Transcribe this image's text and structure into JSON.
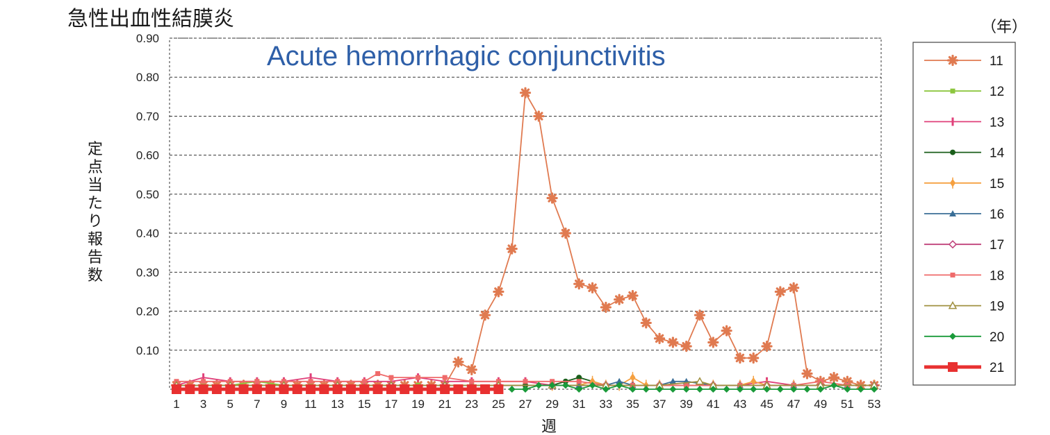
{
  "chart_data": {
    "type": "line",
    "title": "急性出血性結膜炎",
    "subtitle": "Acute hemorrhagic conjunctivitis",
    "xlabel": "週",
    "ylabel": "定点当たり報告数",
    "legend_title": "（年）",
    "legend_position": "right",
    "grid": true,
    "ylim": [
      0,
      0.9
    ],
    "yticks": [
      0.1,
      0.2,
      0.3,
      0.4,
      0.5,
      0.6,
      0.7,
      0.8,
      0.9
    ],
    "ytick_labels": [
      "0.10",
      "0.20",
      "0.30",
      "0.40",
      "0.50",
      "0.60",
      "0.70",
      "0.80",
      "0.90"
    ],
    "xlim": [
      1,
      53
    ],
    "xtick_labels": [
      "1",
      "3",
      "5",
      "7",
      "9",
      "11",
      "13",
      "15",
      "17",
      "19",
      "21",
      "23",
      "25",
      "27",
      "29",
      "31",
      "33",
      "35",
      "37",
      "39",
      "41",
      "43",
      "45",
      "47",
      "49",
      "51",
      "53"
    ],
    "series": [
      {
        "name": "11",
        "color": "#e07a50",
        "marker": "asterisk",
        "x": [
          1,
          2,
          3,
          4,
          5,
          6,
          7,
          8,
          9,
          10,
          11,
          12,
          13,
          14,
          15,
          16,
          17,
          18,
          19,
          20,
          21,
          22,
          23,
          24,
          25,
          26,
          27,
          28,
          29,
          30,
          31,
          32,
          33,
          34,
          35,
          36,
          37,
          38,
          39,
          40,
          41,
          42,
          43,
          44,
          45,
          46,
          47,
          48,
          49,
          50,
          51,
          52,
          53
        ],
        "values": [
          0.01,
          0.01,
          0.01,
          0.01,
          0.01,
          0.01,
          0.01,
          0.01,
          0.01,
          0.01,
          0.01,
          0.01,
          0.01,
          0.01,
          0.01,
          0.01,
          0.01,
          0.01,
          0.01,
          0.01,
          0.01,
          0.07,
          0.05,
          0.19,
          0.25,
          0.36,
          0.76,
          0.7,
          0.49,
          0.4,
          0.27,
          0.26,
          0.21,
          0.23,
          0.24,
          0.17,
          0.13,
          0.12,
          0.11,
          0.19,
          0.12,
          0.15,
          0.08,
          0.08,
          0.11,
          0.25,
          0.26,
          0.04,
          0.02,
          0.03,
          0.02,
          0.01,
          0.01
        ]
      },
      {
        "name": "12",
        "color": "#8cc63e",
        "marker": "square",
        "x": [
          1,
          3,
          5,
          7,
          9,
          11,
          13,
          15,
          17,
          19,
          21,
          23,
          25,
          27,
          29,
          31,
          33,
          35,
          37,
          39,
          41,
          43,
          45,
          47,
          49,
          51,
          53
        ],
        "values": [
          0.01,
          0.01,
          0.01,
          0.02,
          0.01,
          0.01,
          0.01,
          0.01,
          0.01,
          0.01,
          0.01,
          0.01,
          0.01,
          0.01,
          0.01,
          0.01,
          0.01,
          0.01,
          0.01,
          0.01,
          0.01,
          0.01,
          0.01,
          0.01,
          0.01,
          0.01,
          0.01
        ]
      },
      {
        "name": "13",
        "color": "#e0407a",
        "marker": "bar",
        "x": [
          1,
          3,
          5,
          7,
          9,
          11,
          13,
          15,
          17,
          19,
          21,
          23,
          25,
          27,
          29,
          31,
          33,
          35,
          37,
          39,
          41,
          43,
          45,
          47,
          49,
          51,
          53
        ],
        "values": [
          0.01,
          0.03,
          0.02,
          0.02,
          0.02,
          0.03,
          0.02,
          0.02,
          0.02,
          0.03,
          0.02,
          0.02,
          0.02,
          0.02,
          0.01,
          0.01,
          0.01,
          0.01,
          0.01,
          0.01,
          0.01,
          0.01,
          0.02,
          0.01,
          0.01,
          0.01,
          0.01
        ]
      },
      {
        "name": "14",
        "color": "#1a5e1a",
        "marker": "circle",
        "x": [
          1,
          5,
          9,
          13,
          17,
          21,
          25,
          27,
          29,
          30,
          31,
          33,
          35,
          37,
          39,
          41,
          43,
          45,
          47,
          49,
          51,
          53
        ],
        "values": [
          0.01,
          0.01,
          0.01,
          0.01,
          0.01,
          0.01,
          0.01,
          0.01,
          0.01,
          0.02,
          0.03,
          0.01,
          0.01,
          0.01,
          0.01,
          0.01,
          0.01,
          0.01,
          0.01,
          0.01,
          0.01,
          0.01
        ]
      },
      {
        "name": "15",
        "color": "#f5a040",
        "marker": "diamond-bar",
        "x": [
          1,
          5,
          9,
          13,
          17,
          21,
          25,
          29,
          31,
          32,
          33,
          34,
          35,
          36,
          37,
          39,
          41,
          43,
          44,
          45,
          47,
          49,
          51,
          53
        ],
        "values": [
          0.01,
          0.01,
          0.01,
          0.01,
          0.01,
          0.01,
          0.01,
          0.01,
          0.01,
          0.02,
          0.01,
          0.01,
          0.03,
          0.01,
          0.01,
          0.01,
          0.01,
          0.01,
          0.02,
          0.01,
          0.01,
          0.01,
          0.01,
          0.01
        ]
      },
      {
        "name": "16",
        "color": "#3a6e96",
        "marker": "triangle",
        "x": [
          1,
          5,
          9,
          13,
          17,
          21,
          25,
          29,
          31,
          33,
          34,
          35,
          37,
          38,
          39,
          41,
          43,
          45,
          47,
          49,
          51,
          53
        ],
        "values": [
          0.01,
          0.01,
          0.01,
          0.01,
          0.01,
          0.01,
          0.01,
          0.01,
          0.01,
          0.01,
          0.02,
          0.01,
          0.01,
          0.02,
          0.02,
          0.01,
          0.01,
          0.01,
          0.01,
          0.01,
          0.01,
          0.01
        ]
      },
      {
        "name": "17",
        "color": "#c0407a",
        "marker": "open-diamond",
        "x": [
          1,
          5,
          9,
          13,
          17,
          21,
          25,
          29,
          33,
          37,
          41,
          45,
          49,
          53
        ],
        "values": [
          0.01,
          0.01,
          0.01,
          0.01,
          0.01,
          0.01,
          0.01,
          0.01,
          0.01,
          0.01,
          0.01,
          0.01,
          0.01,
          0.01
        ]
      },
      {
        "name": "18",
        "color": "#ef6a6a",
        "marker": "square",
        "x": [
          1,
          3,
          5,
          7,
          9,
          11,
          13,
          15,
          16,
          17,
          19,
          21,
          23,
          25,
          27,
          29,
          31,
          33,
          35,
          37,
          39,
          41,
          43,
          45,
          47,
          49,
          51,
          53
        ],
        "values": [
          0.02,
          0.02,
          0.02,
          0.02,
          0.02,
          0.02,
          0.02,
          0.02,
          0.04,
          0.03,
          0.03,
          0.03,
          0.02,
          0.02,
          0.02,
          0.02,
          0.02,
          0.01,
          0.01,
          0.01,
          0.01,
          0.01,
          0.01,
          0.01,
          0.01,
          0.02,
          0.01,
          0.01
        ]
      },
      {
        "name": "19",
        "color": "#a09040",
        "marker": "open-triangle",
        "x": [
          1,
          5,
          9,
          13,
          17,
          21,
          25,
          29,
          33,
          37,
          40,
          41,
          45,
          49,
          53
        ],
        "values": [
          0.01,
          0.01,
          0.01,
          0.01,
          0.01,
          0.01,
          0.01,
          0.01,
          0.01,
          0.01,
          0.02,
          0.01,
          0.01,
          0.01,
          0.01
        ]
      },
      {
        "name": "20",
        "color": "#1a9a3a",
        "marker": "diamond",
        "x": [
          26,
          27,
          28,
          29,
          30,
          31,
          32,
          33,
          34,
          35,
          36,
          37,
          38,
          39,
          40,
          41,
          42,
          43,
          44,
          45,
          46,
          47,
          48,
          49,
          50,
          51,
          52,
          53
        ],
        "values": [
          0.0,
          0.0,
          0.01,
          0.01,
          0.01,
          0.0,
          0.01,
          0.0,
          0.01,
          0.0,
          0.0,
          0.0,
          0.0,
          0.0,
          0.0,
          0.0,
          0.0,
          0.0,
          0.0,
          0.0,
          0.0,
          0.0,
          0.0,
          0.0,
          0.01,
          0.0,
          0.0,
          0.0
        ]
      },
      {
        "name": "21",
        "color": "#e83030",
        "marker": "big-square",
        "x": [
          1,
          2,
          3,
          4,
          5,
          6,
          7,
          8,
          9,
          10,
          11,
          12,
          13,
          14,
          15,
          16,
          17,
          18,
          19,
          20,
          21,
          22,
          23,
          24,
          25
        ],
        "values": [
          0.0,
          0.0,
          0.0,
          0.0,
          0.0,
          0.0,
          0.0,
          0.0,
          0.0,
          0.0,
          0.0,
          0.0,
          0.0,
          0.0,
          0.0,
          0.0,
          0.0,
          0.0,
          0.0,
          0.0,
          0.0,
          0.0,
          0.0,
          0.0,
          0.0
        ]
      }
    ]
  }
}
